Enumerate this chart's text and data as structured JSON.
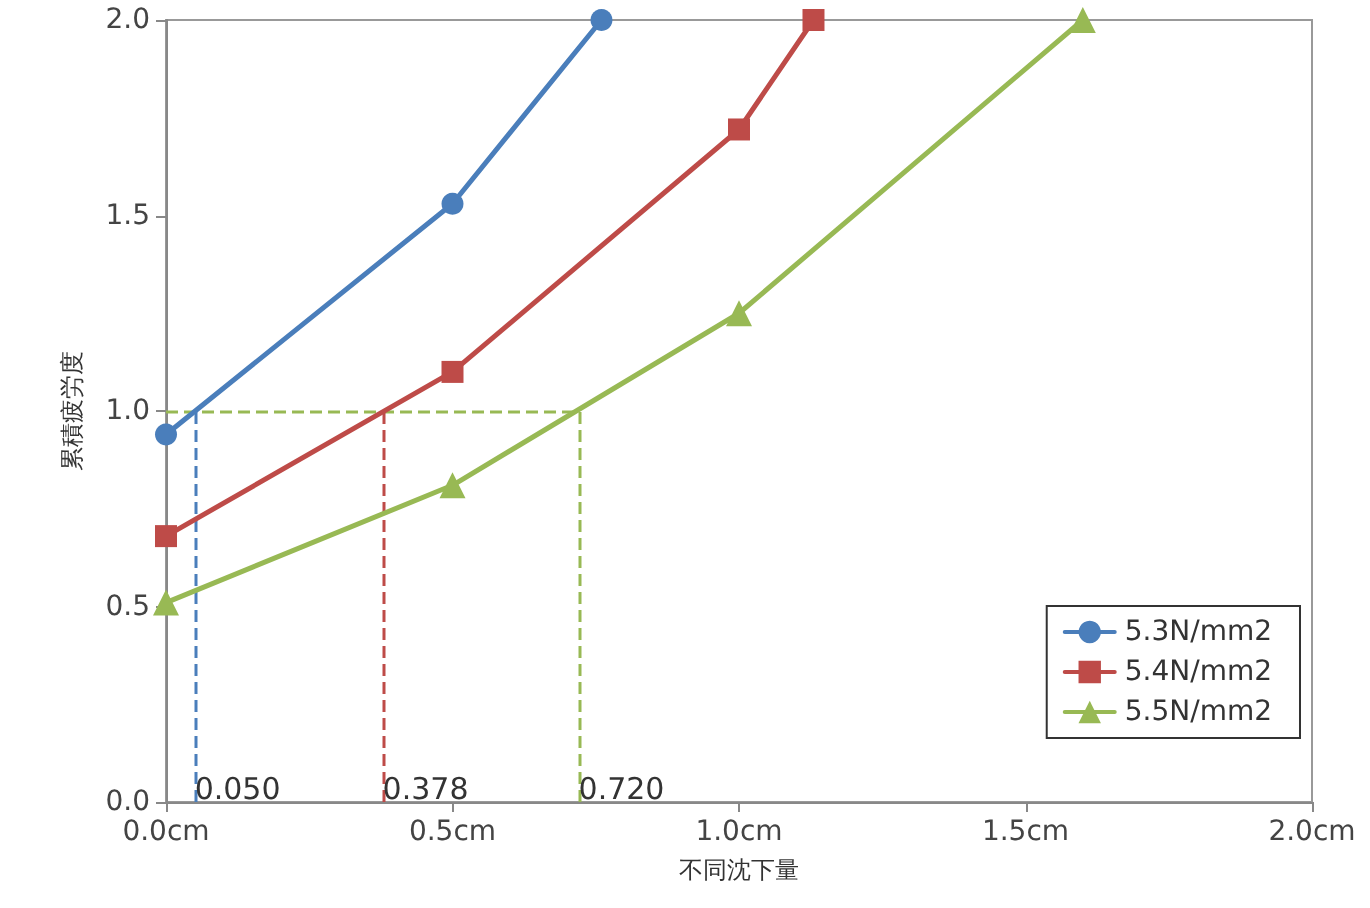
{
  "chart_data": {
    "type": "line",
    "xlabel": "不同沈下量",
    "ylabel": "累積疲労度",
    "xlim": [
      0,
      2
    ],
    "xticks": [
      {
        "value": 0,
        "label": "0.0cm"
      },
      {
        "value": 0.5,
        "label": "0.5cm"
      },
      {
        "value": 1,
        "label": "1.0cm"
      },
      {
        "value": 1.5,
        "label": "1.5cm"
      },
      {
        "value": 2,
        "label": "2.0cm"
      }
    ],
    "ylim": [
      0,
      2
    ],
    "yticks": [
      {
        "value": 0,
        "label": "0.0"
      },
      {
        "value": 0.5,
        "label": "0.5"
      },
      {
        "value": 1,
        "label": "1.0"
      },
      {
        "value": 1.5,
        "label": "1.5"
      },
      {
        "value": 2,
        "label": "2.0"
      }
    ],
    "grid": false,
    "legend": "bottom right",
    "line_style": "solid",
    "series": [
      {
        "name": "5.3N/mm2",
        "color": "#4a7ebb",
        "marker": "circle",
        "x": [
          0,
          0.5,
          0.76
        ],
        "values": [
          0.94,
          1.53,
          2.0
        ]
      },
      {
        "name": "5.4N/mm2",
        "color": "#be4b48",
        "marker": "square",
        "x": [
          0,
          0.5,
          1.0,
          1.13
        ],
        "values": [
          0.68,
          1.1,
          1.72,
          2.0
        ]
      },
      {
        "name": "5.5N/mm2",
        "color": "#98b954",
        "marker": "triangle",
        "x": [
          0,
          0.5,
          1.0,
          1.6
        ],
        "values": [
          0.51,
          0.81,
          1.25,
          2.0
        ]
      }
    ],
    "ref_lines": [
      {
        "axis": "y",
        "value": 1.0,
        "label": null,
        "color": "#98b954",
        "line_style": "dashed"
      },
      {
        "axis": "x",
        "value": 0.05,
        "label": "0.050",
        "color": "#4a7ebb",
        "line_style": "dashed"
      },
      {
        "axis": "x",
        "value": 0.378,
        "label": "0.378",
        "color": "#be4b48",
        "line_style": "dashed"
      },
      {
        "axis": "x",
        "value": 0.72,
        "label": "0.720",
        "color": "#98b954",
        "line_style": "dashed"
      }
    ]
  }
}
